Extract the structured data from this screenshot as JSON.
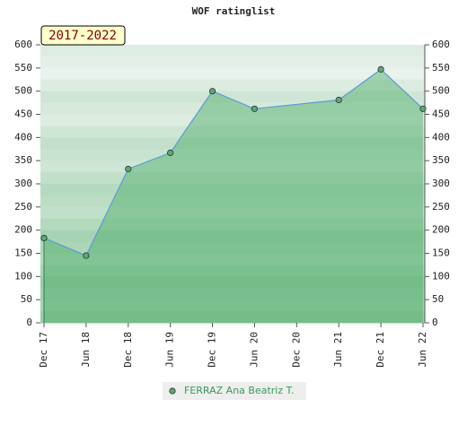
{
  "chart_data": {
    "type": "line",
    "title": "WOF ratinglist",
    "badge": "2017-2022",
    "x": [
      0,
      1,
      2,
      3,
      4,
      5,
      7,
      8,
      9
    ],
    "xlim": [
      0,
      9
    ],
    "xticks": [
      {
        "value": 0,
        "label": "Dec 17"
      },
      {
        "value": 1,
        "label": "Jun 18"
      },
      {
        "value": 2,
        "label": "Dec 18"
      },
      {
        "value": 3,
        "label": "Jun 19"
      },
      {
        "value": 4,
        "label": "Dec 19"
      },
      {
        "value": 5,
        "label": "Jun 20"
      },
      {
        "value": 6,
        "label": "Dec 20"
      },
      {
        "value": 7,
        "label": "Jun 21"
      },
      {
        "value": 8,
        "label": "Dec 21"
      },
      {
        "value": 9,
        "label": "Jun 22"
      }
    ],
    "ylim": [
      0,
      600
    ],
    "yticks": [
      0,
      50,
      100,
      150,
      200,
      250,
      300,
      350,
      400,
      450,
      500,
      550,
      600
    ],
    "series": [
      {
        "name": "FERRAZ Ana Beatriz T.",
        "color": "#5b9bd5",
        "marker_color": "#5fa86e",
        "values": [
          183,
          145,
          332,
          367,
          500,
          462,
          481,
          547,
          462
        ]
      }
    ]
  }
}
